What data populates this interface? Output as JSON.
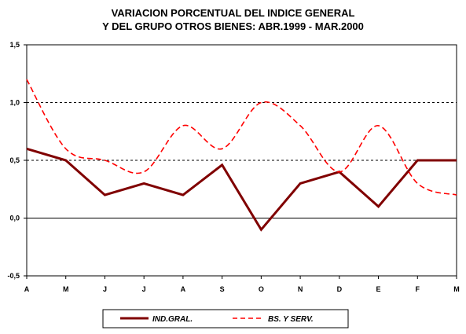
{
  "chart_data": {
    "type": "line",
    "title_lines": [
      "VARIACION PORCENTUAL DEL INDICE GENERAL",
      "Y DEL GRUPO OTROS BIENES: ABR.1999 -  MAR.2000"
    ],
    "categories": [
      "A",
      "M",
      "J",
      "J",
      "A",
      "S",
      "O",
      "N",
      "D",
      "E",
      "F",
      "M"
    ],
    "y_ticks": [
      "1,5",
      "1,0",
      "0,5",
      "0,0",
      "-0,5"
    ],
    "ylim": [
      -0.5,
      1.5
    ],
    "reference_lines": [
      1.0,
      0.5
    ],
    "zero_line": 0.0,
    "series": [
      {
        "name": "IND.GRAL.",
        "style": "solid",
        "color": "#800000",
        "values": [
          0.6,
          0.5,
          0.2,
          0.3,
          0.2,
          0.46,
          -0.1,
          0.3,
          0.4,
          0.1,
          0.5,
          0.5
        ]
      },
      {
        "name": "BS. Y SERV.",
        "style": "dashed",
        "color": "#ff0000",
        "values": [
          1.2,
          0.6,
          0.5,
          0.4,
          0.8,
          0.6,
          1.0,
          0.8,
          0.4,
          0.8,
          0.3,
          0.2
        ]
      }
    ]
  }
}
